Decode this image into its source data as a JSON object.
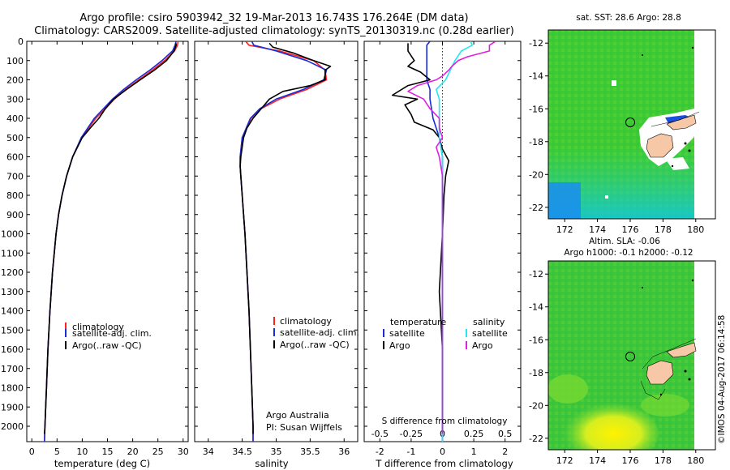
{
  "header": {
    "line1": "Argo profile: csiro 5903942_32 19-Mar-2013 16.743S 176.264E (DM data)",
    "line2": "Climatology: CARS2009. Satellite-adjusted climatology: synTS_20130319.nc (0.28d earlier)"
  },
  "colors": {
    "climatology": "#ff2020",
    "satellite": "#1a2bd8",
    "argo": "#000000",
    "salinity_satellite": "#22e8f0",
    "salinity_argo": "#e020e0",
    "land": "#f6c8a8"
  },
  "chart_data": [
    {
      "type": "line",
      "name": "temperature-profile",
      "xlabel": "temperature (deg C)",
      "ylabel": "",
      "xlim": [
        -1,
        31
      ],
      "ylim": [
        2080,
        0
      ],
      "xticks": [
        "0",
        "5",
        "10",
        "15",
        "20",
        "25",
        "30"
      ],
      "yticks": [
        "0",
        "100",
        "200",
        "300",
        "400",
        "500",
        "600",
        "700",
        "800",
        "900",
        "1000",
        "1100",
        "1200",
        "1300",
        "1400",
        "1500",
        "1600",
        "1700",
        "1800",
        "1900",
        "2000"
      ],
      "legend": [
        "climatology",
        "satellite-adj. clim.",
        "Argo(..raw -QC)"
      ],
      "series": [
        {
          "name": "climatology",
          "depth": [
            0,
            20,
            50,
            100,
            150,
            200,
            250,
            300,
            400,
            500,
            600,
            700,
            800,
            900,
            1000,
            1200,
            1400,
            1600,
            1800,
            2000,
            2080
          ],
          "values": [
            29.0,
            28.9,
            28.3,
            26.3,
            23.9,
            21.2,
            18.6,
            16.4,
            12.7,
            9.9,
            8.1,
            6.9,
            6.0,
            5.3,
            4.8,
            4.1,
            3.6,
            3.2,
            2.9,
            2.6,
            2.5
          ]
        },
        {
          "name": "satellite-adj. clim.",
          "depth": [
            0,
            20,
            50,
            100,
            150,
            200,
            250,
            300,
            400,
            500,
            600,
            700,
            800,
            900,
            1000,
            1200,
            1400,
            1600,
            1800,
            2000,
            2080
          ],
          "values": [
            28.6,
            28.4,
            27.9,
            25.8,
            23.4,
            20.7,
            18.2,
            16.0,
            12.4,
            9.8,
            8.1,
            6.9,
            6.0,
            5.3,
            4.8,
            4.1,
            3.6,
            3.2,
            2.9,
            2.6,
            2.5
          ]
        },
        {
          "name": "Argo(..raw -QC)",
          "depth": [
            10,
            20,
            50,
            100,
            150,
            200,
            250,
            300,
            350,
            400,
            450,
            500,
            600,
            700,
            800,
            900,
            1000,
            1200,
            1400,
            1600,
            1800,
            2000,
            2040
          ],
          "values": [
            28.6,
            28.6,
            28.2,
            26.7,
            24.3,
            21.5,
            18.8,
            16.2,
            14.6,
            13.3,
            11.6,
            10.0,
            8.1,
            6.9,
            6.0,
            5.3,
            4.8,
            4.1,
            3.6,
            3.2,
            2.9,
            2.6,
            2.5
          ]
        }
      ]
    },
    {
      "type": "line",
      "name": "salinity-profile",
      "xlabel": "salinity",
      "ylabel": "",
      "xlim": [
        33.8,
        36.2
      ],
      "ylim": [
        2080,
        0
      ],
      "xticks": [
        "34",
        "34.5",
        "35",
        "35.5",
        "36"
      ],
      "legend": [
        "climatology",
        "satellite-adj. clim.",
        "Argo(..raw -QC)"
      ],
      "annotations": [
        "Argo Australia",
        "PI: Susan Wijffels"
      ],
      "series": [
        {
          "name": "climatology",
          "depth": [
            0,
            20,
            50,
            100,
            150,
            200,
            250,
            300,
            350,
            400,
            500,
            600,
            650,
            700,
            800,
            900,
            1000,
            1200,
            1400,
            1600,
            1800,
            2000,
            2080
          ],
          "values": [
            34.55,
            34.6,
            35.05,
            35.55,
            35.72,
            35.74,
            35.45,
            35.05,
            34.78,
            34.63,
            34.5,
            34.47,
            34.47,
            34.48,
            34.5,
            34.52,
            34.54,
            34.57,
            34.6,
            34.62,
            34.64,
            34.66,
            34.66
          ]
        },
        {
          "name": "satellite-adj. clim.",
          "depth": [
            0,
            20,
            50,
            100,
            150,
            200,
            250,
            300,
            350,
            400,
            500,
            600,
            650,
            700,
            800,
            900,
            1000,
            1200,
            1400,
            1600,
            1800,
            2000,
            2080
          ],
          "values": [
            34.64,
            34.67,
            35.0,
            35.45,
            35.74,
            35.7,
            35.4,
            35.0,
            34.76,
            34.62,
            34.5,
            34.47,
            34.47,
            34.48,
            34.5,
            34.52,
            34.54,
            34.57,
            34.6,
            34.62,
            34.64,
            34.66,
            34.66
          ]
        },
        {
          "name": "Argo(..raw -QC)",
          "depth": [
            10,
            30,
            60,
            100,
            130,
            150,
            200,
            230,
            260,
            300,
            350,
            400,
            450,
            500,
            600,
            650,
            700,
            800,
            900,
            1000,
            1200,
            1400,
            1600,
            1800,
            2000,
            2040
          ],
          "values": [
            34.9,
            34.95,
            35.25,
            35.55,
            35.8,
            35.72,
            35.72,
            35.5,
            35.1,
            34.9,
            34.78,
            34.66,
            34.57,
            34.52,
            34.48,
            34.47,
            34.48,
            34.5,
            34.52,
            34.54,
            34.57,
            34.6,
            34.62,
            34.64,
            34.66,
            34.66
          ]
        }
      ]
    },
    {
      "type": "line",
      "name": "difference-profile",
      "xlabel": "T difference from climatology",
      "xlabel_top": "S difference from climatology",
      "xlim": [
        -2.5,
        2.5
      ],
      "ylim": [
        2080,
        0
      ],
      "xticks": [
        "-2",
        "-1",
        "0",
        "1",
        "2"
      ],
      "xticks_salinity": [
        "-0.5",
        "-0.25",
        "0",
        "0.25",
        "0.5"
      ],
      "legend_headers": [
        "temperature",
        "salinity"
      ],
      "legend": [
        "satellite",
        "Argo",
        "satellite",
        "Argo"
      ],
      "series": [
        {
          "name": "temperature satellite",
          "depth": [
            0,
            20,
            50,
            100,
            150,
            200,
            250,
            300,
            400,
            500,
            600,
            700,
            800,
            900,
            1000,
            1200,
            1400,
            1600,
            1800,
            2000,
            2080
          ],
          "values": [
            -0.4,
            -0.5,
            -0.5,
            -0.5,
            -0.5,
            -0.5,
            -0.4,
            -0.4,
            -0.3,
            -0.1,
            0,
            0,
            0,
            0,
            0,
            0,
            0,
            0,
            0,
            0,
            0
          ]
        },
        {
          "name": "temperature Argo",
          "depth": [
            10,
            50,
            100,
            130,
            160,
            200,
            230,
            280,
            300,
            330,
            380,
            420,
            460,
            500,
            560,
            620,
            700,
            800,
            1000,
            1300,
            1600,
            2000,
            2040
          ],
          "values": [
            -1.1,
            -1.1,
            -0.9,
            -1.1,
            -0.7,
            -0.4,
            -1.1,
            -1.6,
            -0.8,
            -1.2,
            -1.0,
            -0.9,
            -0.3,
            -0.1,
            0,
            0.2,
            0.1,
            0.05,
            0,
            -0.1,
            0,
            0,
            0
          ]
        },
        {
          "name": "salinity satellite",
          "depth": [
            0,
            20,
            50,
            100,
            150,
            200,
            250,
            300,
            400,
            500,
            600,
            800,
            1000,
            1200,
            1400,
            1600,
            1800,
            2000,
            2080
          ],
          "values": [
            0.9,
            0.95,
            0.6,
            0.4,
            0.25,
            0.1,
            -0.2,
            -0.1,
            -0.1,
            -0.1,
            0,
            0,
            0,
            0,
            0,
            0,
            0,
            0,
            0
          ]
        },
        {
          "name": "salinity Argo",
          "depth": [
            0,
            20,
            50,
            80,
            100,
            130,
            150,
            180,
            200,
            230,
            260,
            300,
            350,
            400,
            450,
            500,
            550,
            600,
            700,
            800,
            1000,
            1200,
            1400,
            1600,
            1800,
            2000,
            2040
          ],
          "values": [
            1.7,
            1.5,
            1.5,
            0.8,
            0.5,
            0.3,
            0.2,
            0,
            -0.2,
            -0.8,
            -1.1,
            -0.6,
            -0.4,
            -0.1,
            -0.1,
            0,
            -0.2,
            -0.1,
            0,
            0,
            0,
            0,
            0,
            0,
            0,
            0,
            0
          ]
        }
      ]
    },
    {
      "type": "heatmap",
      "name": "sst-map",
      "title": "sat. SST: 28.6  Argo: 28.8",
      "xticks": [
        "172",
        "174",
        "176",
        "178",
        "180"
      ],
      "yticks": [
        "-12",
        "-14",
        "-16",
        "-18",
        "-20",
        "-22"
      ],
      "xlim": [
        171,
        181.2
      ],
      "ylim": [
        -22.7,
        -11.2
      ],
      "marker": {
        "lon": 176.264,
        "lat": -16.743
      }
    },
    {
      "type": "heatmap",
      "name": "sla-map",
      "title": "Altim. SLA: -0.06",
      "subtitle": "Argo h1000: -0.1  h2000: -0.12",
      "xticks": [
        "172",
        "174",
        "176",
        "178",
        "180"
      ],
      "yticks": [
        "-12",
        "-14",
        "-16",
        "-18",
        "-20",
        "-22"
      ],
      "xlim": [
        171,
        181.2
      ],
      "ylim": [
        -22.7,
        -11.2
      ],
      "marker": {
        "lon": 176.264,
        "lat": -16.743
      }
    }
  ],
  "footer": {
    "stamp": "©IMOS 04-Aug-2017 06:14:58"
  }
}
